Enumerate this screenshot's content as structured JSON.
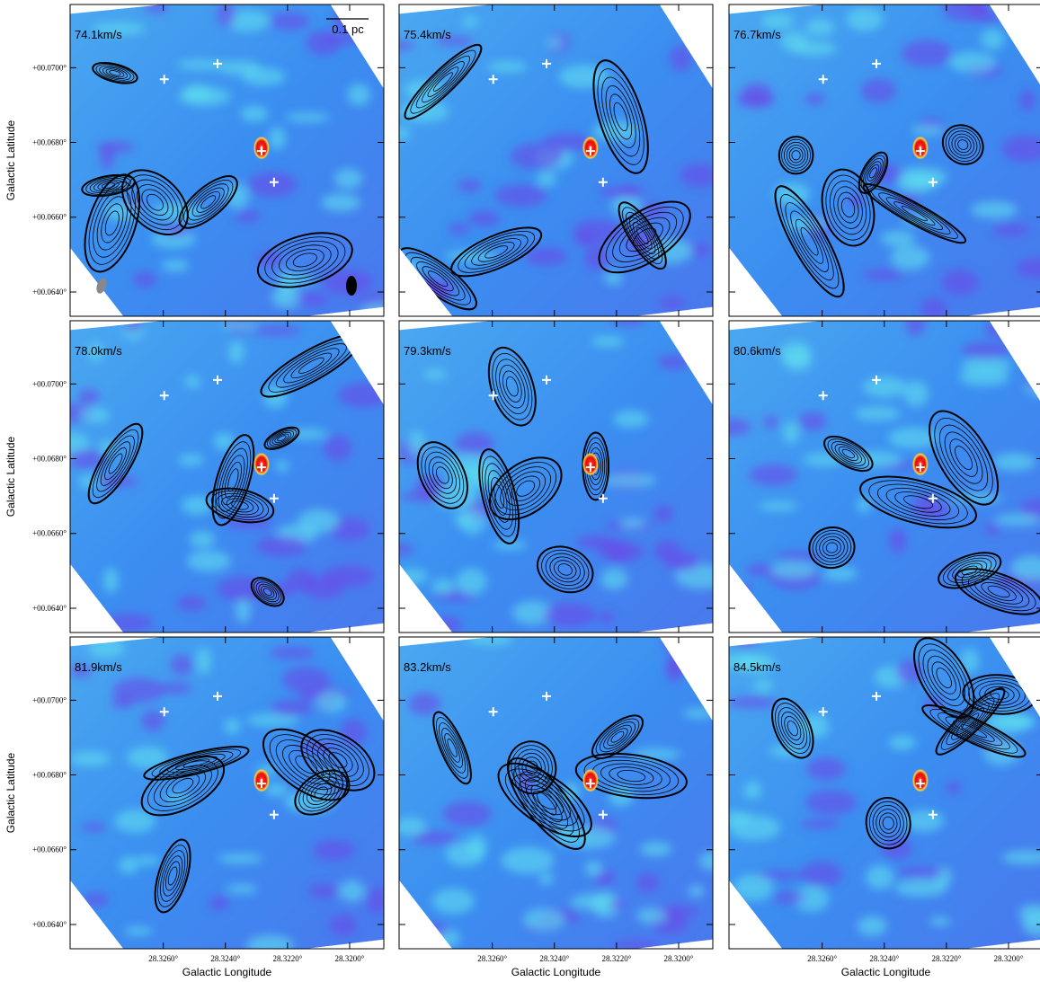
{
  "chart_data": {
    "type": "channel-map",
    "panels": [
      {
        "label": "74.1km/s"
      },
      {
        "label": "75.4km/s"
      },
      {
        "label": "76.7km/s"
      },
      {
        "label": "78.0km/s"
      },
      {
        "label": "79.3km/s"
      },
      {
        "label": "80.6km/s"
      },
      {
        "label": "81.9km/s"
      },
      {
        "label": "83.2km/s"
      },
      {
        "label": "84.5km/s"
      }
    ],
    "xlabel": "Galactic Longitude",
    "ylabel": "Galactic Latitude",
    "scale_bar_label": "0.1 pc",
    "xlim": [
      28.329,
      28.3189
    ],
    "ylim": [
      0.06335,
      0.07169
    ],
    "xticks": [
      {
        "value": 28.326,
        "label": "28.3260°"
      },
      {
        "value": 28.324,
        "label": "28.3240°"
      },
      {
        "value": 28.322,
        "label": "28.3220°"
      },
      {
        "value": 28.32,
        "label": "28.3200°"
      }
    ],
    "yticks": [
      {
        "value": 0.064,
        "label": "+00.0640°"
      },
      {
        "value": 0.066,
        "label": "+00.0660°"
      },
      {
        "value": 0.068,
        "label": "+00.0680°"
      },
      {
        "value": 0.07,
        "label": "+00.0700°"
      }
    ]
  }
}
